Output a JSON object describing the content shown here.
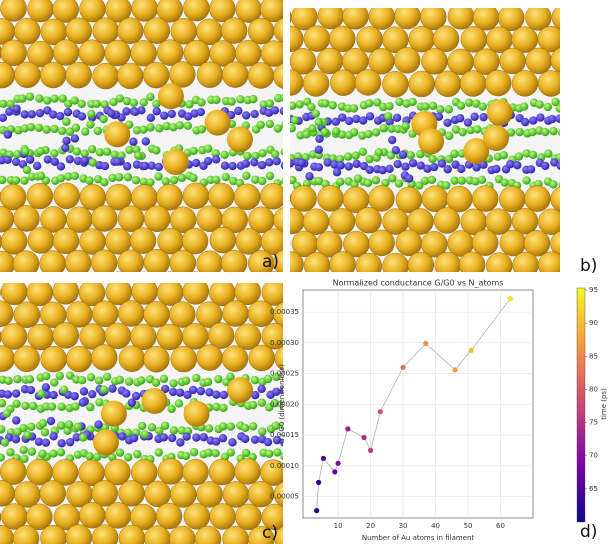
{
  "panels": {
    "a": "a)",
    "b": "b)",
    "c": "c)",
    "d": "d)"
  },
  "chart_data": {
    "type": "scatter",
    "title": "Normalized conductance G/G0 vs N_atoms",
    "x_label": "Number of Au atoms in filament",
    "y_label": "G / G0 (dimensionless)",
    "colorbar_label": "time (ps)",
    "colormap": "plasma",
    "connect": true,
    "line_color": "#b0b0b0",
    "x": [
      3.4,
      4,
      5.5,
      9,
      10,
      13,
      18,
      20,
      23,
      30,
      37,
      46,
      51,
      63
    ],
    "values": [
      2.7e-05,
      7.3e-05,
      0.000112,
      9e-05,
      0.000104,
      0.00016,
      0.000146,
      0.000125,
      0.000188,
      0.00026,
      0.000299,
      0.000256,
      0.000288,
      0.000372
    ],
    "time": [
      62,
      63,
      65,
      67,
      69,
      72,
      74,
      76,
      79,
      82,
      85,
      87,
      90,
      93
    ],
    "xlim": [
      -0.8,
      70
    ],
    "ylim": [
      1.5e-05,
      0.000386
    ],
    "xticks": [
      10,
      20,
      30,
      40,
      50,
      60
    ],
    "yticks": [
      5e-05,
      {
        "value": 0.0001,
        "label": "0.00010"
      },
      0.00015,
      {
        "value": 0.0002,
        "label": "0.00020"
      },
      0.00025,
      {
        "value": 0.0003,
        "label": "0.00030"
      },
      0.00035
    ],
    "clim": [
      60,
      95.3
    ],
    "cticks": [
      65,
      70,
      75,
      80,
      85,
      90,
      95
    ],
    "grid": true
  }
}
